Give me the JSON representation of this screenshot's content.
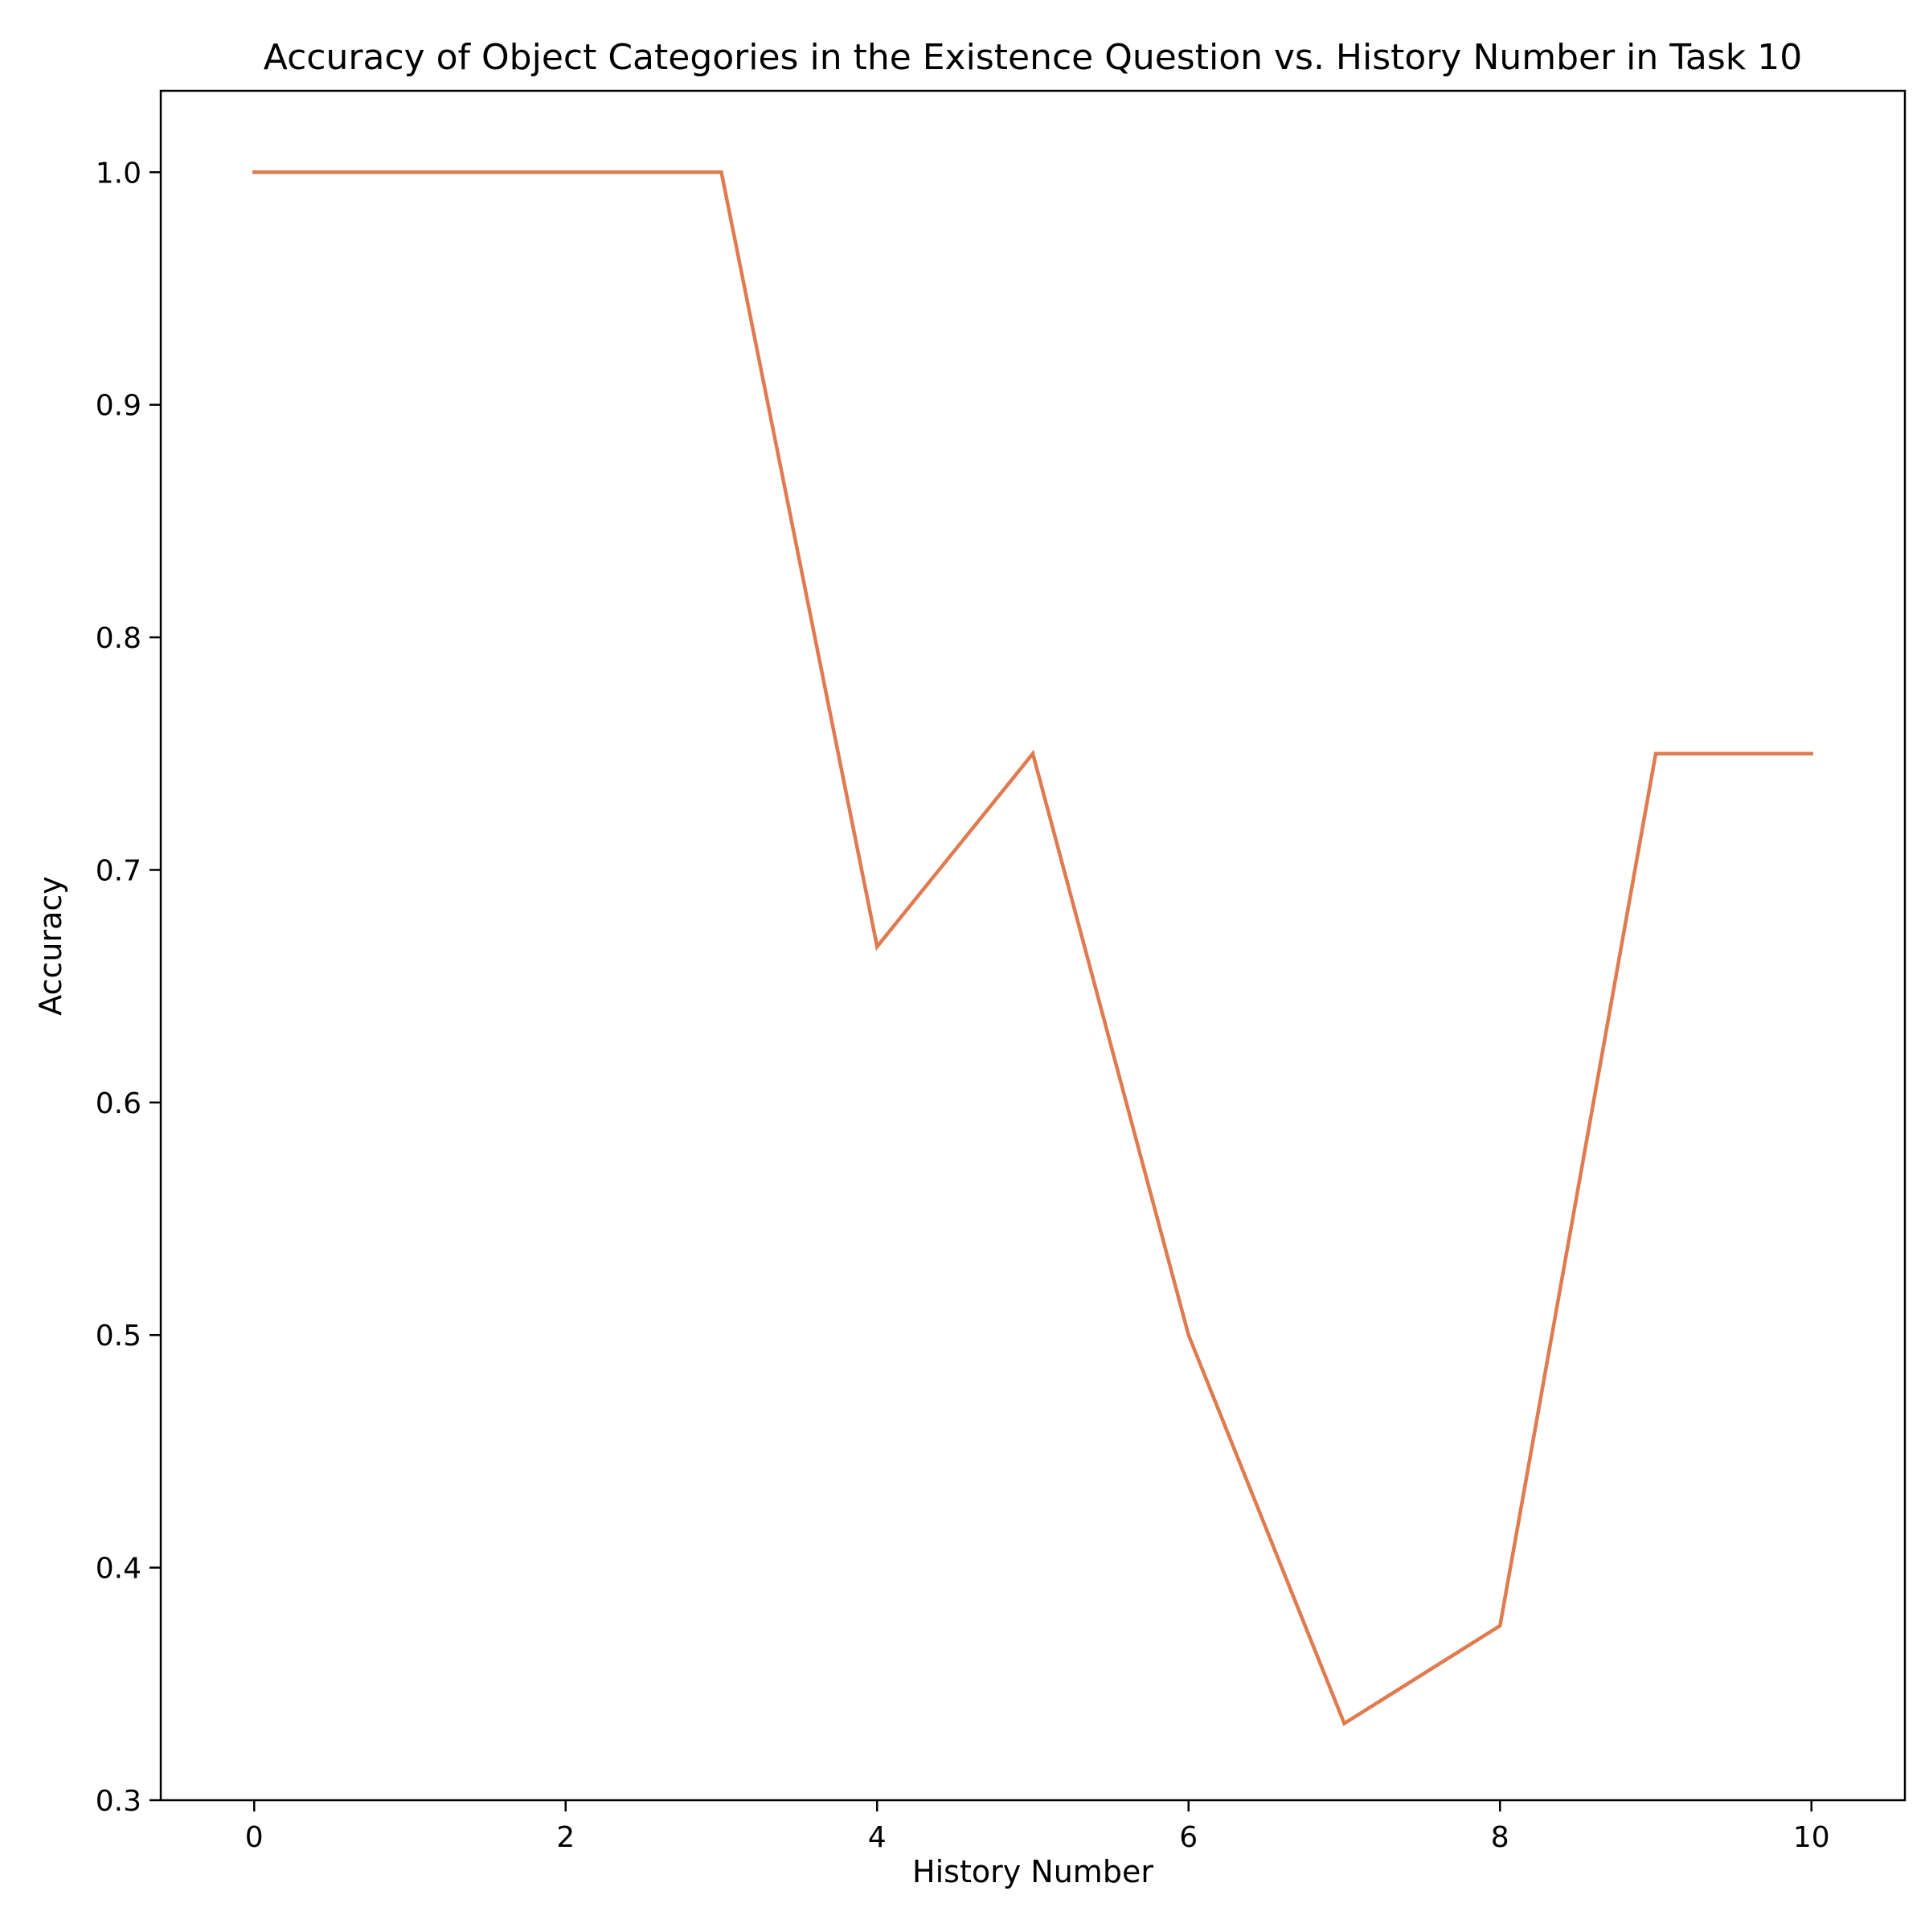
{
  "chart_data": {
    "type": "line",
    "title": "Accuracy of Object Categories in the Existence Question vs. History Number in Task 10",
    "xlabel": "History Number",
    "ylabel": "Accuracy",
    "x": [
      0,
      1,
      2,
      3,
      4,
      5,
      6,
      7,
      8,
      9,
      10
    ],
    "series": [
      {
        "values": [
          1.0,
          1.0,
          1.0,
          1.0,
          0.667,
          0.75,
          0.5,
          0.333,
          0.375,
          0.75,
          0.75
        ],
        "color": "#e07a4f"
      }
    ],
    "xlim": [
      -0.6,
      10.6
    ],
    "ylim": [
      0.3,
      1.035
    ],
    "xticks": [
      0,
      2,
      4,
      6,
      8,
      10
    ],
    "xtick_labels": [
      "0",
      "2",
      "4",
      "6",
      "8",
      "10"
    ],
    "yticks": [
      0.3,
      0.4,
      0.5,
      0.6,
      0.7,
      0.8,
      0.9,
      1.0
    ],
    "ytick_labels": [
      "0.3",
      "0.4",
      "0.5",
      "0.6",
      "0.7",
      "0.8",
      "0.9",
      "1.0"
    ],
    "grid": false,
    "legend": "none"
  }
}
